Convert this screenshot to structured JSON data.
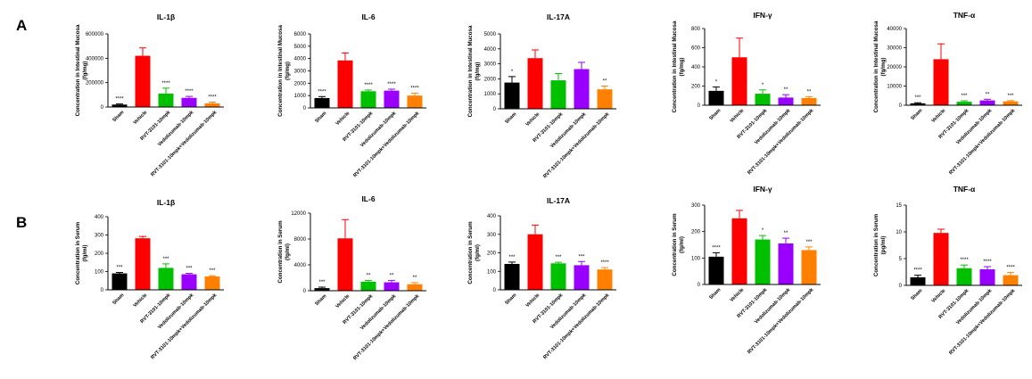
{
  "panels": [
    {
      "label": "A"
    },
    {
      "label": "B"
    }
  ],
  "colors": [
    "#000000",
    "#ff0000",
    "#00c000",
    "#9900ff",
    "#ff8000"
  ],
  "chart_data": [
    {
      "type": "bar",
      "panel": "A",
      "title": "IL-1β",
      "ylabel": [
        "Concentration in Intestinal Mucosa",
        "(fg/mg)"
      ],
      "categories": [
        "Sham",
        "Vehicle",
        "RVT-3101-10mpk",
        "Vedolizumab-10mpk",
        "RVT-3101-10mpk+Vedolizumab-10mpk"
      ],
      "values": [
        20000,
        420000,
        110000,
        75000,
        30000
      ],
      "errors": [
        5000,
        65000,
        45000,
        12000,
        10000
      ],
      "significance": [
        "****",
        "",
        "****",
        "****",
        "****"
      ],
      "ylim": [
        0,
        600000
      ],
      "yticks": [
        0,
        200000,
        400000,
        600000
      ]
    },
    {
      "type": "bar",
      "panel": "A",
      "title": "IL-6",
      "ylabel": [
        "Concentration in Intestinal Mucosa",
        "(fg/mg)"
      ],
      "categories": [
        "Sham",
        "Vehicle",
        "RVT-3101-10mpk",
        "Vedolizumab-10mpk",
        "RVT-3101-10mpk+Vedolizumab-10mpk"
      ],
      "values": [
        800,
        3850,
        1350,
        1400,
        1000
      ],
      "errors": [
        120,
        600,
        100,
        120,
        200
      ],
      "significance": [
        "****",
        "",
        "****",
        "****",
        "****"
      ],
      "ylim": [
        0,
        6000
      ],
      "yticks": [
        0,
        1000,
        2000,
        3000,
        4000,
        5000,
        6000
      ]
    },
    {
      "type": "bar",
      "panel": "A",
      "title": "IL-17A",
      "ylabel": [
        "Concentration in Intestinal Mucosa",
        "(fg/mg)"
      ],
      "categories": [
        "Sham",
        "Vehicle",
        "RVT-3101-10mpk",
        "Vedolizumab-10mpk",
        "RVT-3101-10mpk+Vedolizumab-10mpk"
      ],
      "values": [
        1750,
        3380,
        1900,
        2650,
        1300
      ],
      "errors": [
        400,
        550,
        450,
        450,
        220
      ],
      "significance": [
        "*",
        "",
        "",
        "",
        "**"
      ],
      "ylim": [
        0,
        5000
      ],
      "yticks": [
        0,
        1000,
        2000,
        3000,
        4000,
        5000
      ]
    },
    {
      "type": "bar",
      "panel": "A",
      "title": "IFN-γ",
      "ylabel": [
        "Concentration in Intestinal Mucosa",
        "(fg/mg)"
      ],
      "categories": [
        "Sham",
        "Vehicle",
        "RVT-3101-10mpk",
        "Vedolizumab-10mpk",
        "RVT-3101-10mpk+Vedolizumab-10mpk"
      ],
      "values": [
        150,
        500,
        120,
        80,
        75
      ],
      "errors": [
        40,
        200,
        40,
        30,
        15
      ],
      "significance": [
        "*",
        "",
        "*",
        "**",
        "**"
      ],
      "ylim": [
        0,
        800
      ],
      "yticks": [
        0,
        200,
        400,
        600,
        800
      ]
    },
    {
      "type": "bar",
      "panel": "A",
      "title": "TNF-α",
      "ylabel": [
        "Concentration in Intestinal Mucosa",
        "(fg/mg)"
      ],
      "categories": [
        "Sham",
        "Vehicle",
        "RVT-3101-10mpk",
        "Vedolizumab-10mpk",
        "RVT-3101-10mpk+Vedolizumab-10mpk"
      ],
      "values": [
        1000,
        24000,
        1800,
        2500,
        2000
      ],
      "errors": [
        300,
        8000,
        500,
        600,
        400
      ],
      "significance": [
        "***",
        "",
        "***",
        "**",
        "***"
      ],
      "ylim": [
        0,
        40000
      ],
      "yticks": [
        0,
        10000,
        20000,
        30000,
        40000
      ]
    },
    {
      "type": "bar",
      "panel": "B",
      "title": "IL-1β",
      "ylabel": [
        "Concentration in Serum",
        "(fg/ml)"
      ],
      "categories": [
        "Sham",
        "Vehicle",
        "RVT-3101-10mpk",
        "Vedolizumab-10mpk",
        "RVT-3101-10mpk+Vedolizumab-10mpk"
      ],
      "values": [
        90,
        282,
        120,
        85,
        73
      ],
      "errors": [
        5,
        10,
        22,
        5,
        4
      ],
      "significance": [
        "***",
        "",
        "***",
        "***",
        "***"
      ],
      "ylim": [
        0,
        400
      ],
      "yticks": [
        0,
        100,
        200,
        300,
        400
      ]
    },
    {
      "type": "bar",
      "panel": "B",
      "title": "IL-6",
      "ylabel": [
        "Concentration in Serum",
        "(fg/ml)"
      ],
      "categories": [
        "Sham",
        "Vehicle",
        "RVT-3101-10mpk",
        "Vedolizumab-10mpk",
        "RVT-3101-10mpk+Vedolizumab-10mpk"
      ],
      "values": [
        400,
        8100,
        1400,
        1300,
        1000
      ],
      "errors": [
        150,
        2900,
        200,
        300,
        250
      ],
      "significance": [
        "***",
        "",
        "**",
        "**",
        "**"
      ],
      "ylim": [
        0,
        12000
      ],
      "yticks": [
        0,
        4000,
        8000,
        12000
      ]
    },
    {
      "type": "bar",
      "panel": "B",
      "title": "IL-17A",
      "ylabel": [
        "Concentration in Serum",
        "(fg/ml)"
      ],
      "categories": [
        "Sham",
        "Vehicle",
        "RVT-3101-10mpk",
        "Vedolizumab-10mpk",
        "RVT-3101-10mpk+Vedolizumab-10mpk"
      ],
      "values": [
        140,
        300,
        143,
        133,
        110
      ],
      "errors": [
        10,
        50,
        6,
        20,
        10
      ],
      "significance": [
        "***",
        "",
        "***",
        "***",
        "****"
      ],
      "ylim": [
        0,
        400
      ],
      "yticks": [
        0,
        100,
        200,
        300,
        400
      ]
    },
    {
      "type": "bar",
      "panel": "B",
      "title": "IFN-γ",
      "ylabel": [
        "Concentration in Serum",
        "(fg/ml)"
      ],
      "categories": [
        "Sham",
        "Vehicle",
        "RVT-3101-10mpk",
        "Vedolizumab-10mpk",
        "RVT-3101-10mpk+Vedolizumab-10mpk"
      ],
      "values": [
        105,
        250,
        170,
        155,
        130
      ],
      "errors": [
        15,
        30,
        15,
        20,
        12
      ],
      "significance": [
        "****",
        "",
        "*",
        "**",
        "***"
      ],
      "ylim": [
        0,
        300
      ],
      "yticks": [
        0,
        100,
        200,
        300
      ]
    },
    {
      "type": "bar",
      "panel": "B",
      "title": "TNF-α",
      "ylabel": [
        "Concentration in Serum",
        "(pg/ml)"
      ],
      "categories": [
        "Sham",
        "Vehicle",
        "RVT-3101-10mpk",
        "Vedolizumab-10mpk",
        "RVT-3101-10mpk+Vedolizumab-10mpk"
      ],
      "values": [
        1.5,
        9.8,
        3.2,
        3.0,
        1.9
      ],
      "errors": [
        0.4,
        0.7,
        0.6,
        0.5,
        0.5
      ],
      "significance": [
        "****",
        "",
        "****",
        "****",
        "****"
      ],
      "ylim": [
        0,
        15
      ],
      "yticks": [
        0,
        5,
        10,
        15
      ]
    }
  ]
}
